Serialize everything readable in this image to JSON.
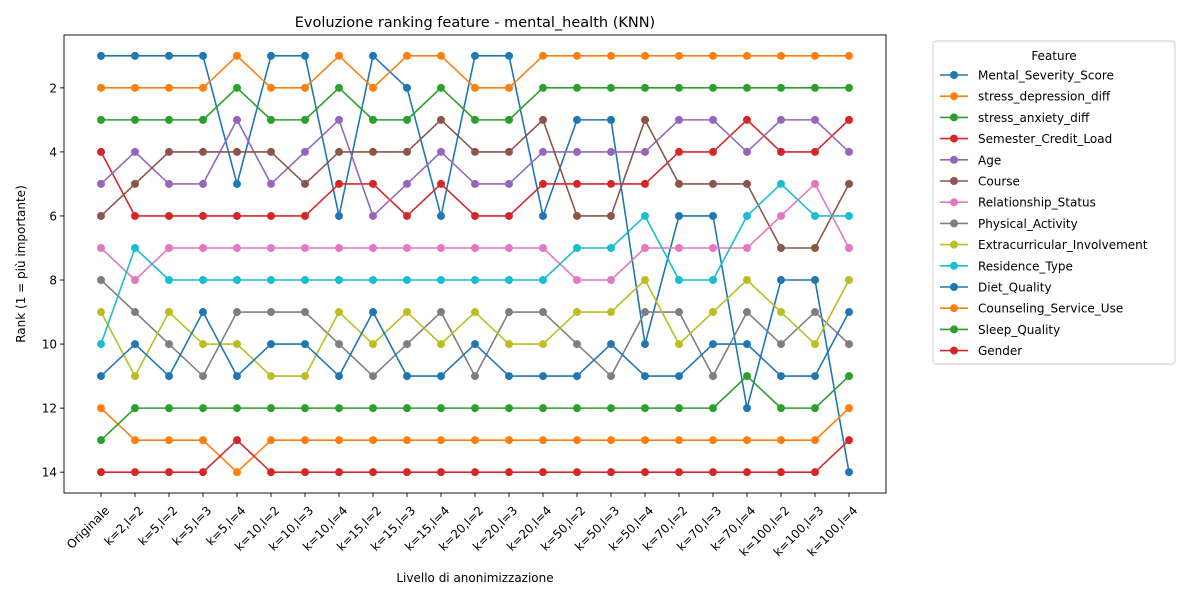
{
  "chart_data": {
    "type": "line",
    "title": "Evoluzione ranking feature - mental_health (KNN)",
    "xlabel": "Livello di anonimizzazione",
    "ylabel": "Rank (1 = più importante)",
    "ylim": [
      14.65,
      0.35
    ],
    "yticks": [
      "2",
      "4",
      "6",
      "8",
      "10",
      "12",
      "14"
    ],
    "inverted_y": true,
    "grid": false,
    "legend_title": "Feature",
    "legend_position": "outside-right",
    "categories": [
      "Originale",
      "k=2,l=2",
      "k=5,l=2",
      "k=5,l=3",
      "k=5,l=4",
      "k=10,l=2",
      "k=10,l=3",
      "k=10,l=4",
      "k=15,l=2",
      "k=15,l=3",
      "k=15,l=4",
      "k=20,l=2",
      "k=20,l=3",
      "k=20,l=4",
      "k=50,l=2",
      "k=50,l=3",
      "k=50,l=4",
      "k=70,l=2",
      "k=70,l=3",
      "k=70,l=4",
      "k=100,l=2",
      "k=100,l=3",
      "k=100,l=4"
    ],
    "series": [
      {
        "name": "Mental_Severity_Score",
        "color": "#1f77b4",
        "values": [
          1,
          1,
          1,
          1,
          5,
          1,
          1,
          6,
          1,
          2,
          6,
          1,
          1,
          6,
          3,
          3,
          10,
          6,
          6,
          12,
          8,
          8,
          14
        ]
      },
      {
        "name": "stress_depression_diff",
        "color": "#ff7f0e",
        "values": [
          2,
          2,
          2,
          2,
          1,
          2,
          2,
          1,
          2,
          1,
          1,
          2,
          2,
          1,
          1,
          1,
          1,
          1,
          1,
          1,
          1,
          1,
          1
        ]
      },
      {
        "name": "stress_anxiety_diff",
        "color": "#2ca02c",
        "values": [
          3,
          3,
          3,
          3,
          2,
          3,
          3,
          2,
          3,
          3,
          2,
          3,
          3,
          2,
          2,
          2,
          2,
          2,
          2,
          2,
          2,
          2,
          2
        ]
      },
      {
        "name": "Semester_Credit_Load",
        "color": "#d62728",
        "values": [
          4,
          6,
          6,
          6,
          6,
          6,
          6,
          5,
          5,
          6,
          5,
          6,
          6,
          5,
          5,
          5,
          5,
          4,
          4,
          3,
          4,
          4,
          3
        ]
      },
      {
        "name": "Age",
        "color": "#9467bd",
        "values": [
          5,
          4,
          5,
          5,
          3,
          5,
          4,
          3,
          6,
          5,
          4,
          5,
          5,
          4,
          4,
          4,
          4,
          3,
          3,
          4,
          3,
          3,
          4
        ]
      },
      {
        "name": "Course",
        "color": "#8c564b",
        "values": [
          6,
          5,
          4,
          4,
          4,
          4,
          5,
          4,
          4,
          4,
          3,
          4,
          4,
          3,
          6,
          6,
          3,
          5,
          5,
          5,
          7,
          7,
          5
        ]
      },
      {
        "name": "Relationship_Status",
        "color": "#e377c2",
        "values": [
          7,
          8,
          7,
          7,
          7,
          7,
          7,
          7,
          7,
          7,
          7,
          7,
          7,
          7,
          8,
          8,
          7,
          7,
          7,
          7,
          6,
          5,
          7
        ]
      },
      {
        "name": "Physical_Activity",
        "color": "#7f7f7f",
        "values": [
          8,
          9,
          10,
          11,
          9,
          9,
          9,
          10,
          11,
          10,
          9,
          11,
          9,
          9,
          10,
          11,
          9,
          9,
          11,
          9,
          10,
          9,
          10
        ]
      },
      {
        "name": "Extracurricular_Involvement",
        "color": "#bcbd22",
        "values": [
          9,
          11,
          9,
          10,
          10,
          11,
          11,
          9,
          10,
          9,
          10,
          9,
          10,
          10,
          9,
          9,
          8,
          10,
          9,
          8,
          9,
          10,
          8
        ]
      },
      {
        "name": "Residence_Type",
        "color": "#17becf",
        "values": [
          10,
          7,
          8,
          8,
          8,
          8,
          8,
          8,
          8,
          8,
          8,
          8,
          8,
          8,
          7,
          7,
          6,
          8,
          8,
          6,
          5,
          6,
          6
        ]
      },
      {
        "name": "Diet_Quality",
        "color": "#1f77b4",
        "values": [
          11,
          10,
          11,
          9,
          11,
          10,
          10,
          11,
          9,
          11,
          11,
          10,
          11,
          11,
          11,
          10,
          11,
          11,
          10,
          10,
          11,
          11,
          9
        ]
      },
      {
        "name": "Counseling_Service_Use",
        "color": "#ff7f0e",
        "values": [
          12,
          13,
          13,
          13,
          14,
          13,
          13,
          13,
          13,
          13,
          13,
          13,
          13,
          13,
          13,
          13,
          13,
          13,
          13,
          13,
          13,
          13,
          12
        ]
      },
      {
        "name": "Sleep_Quality",
        "color": "#2ca02c",
        "values": [
          13,
          12,
          12,
          12,
          12,
          12,
          12,
          12,
          12,
          12,
          12,
          12,
          12,
          12,
          12,
          12,
          12,
          12,
          12,
          11,
          12,
          12,
          11
        ]
      },
      {
        "name": "Gender",
        "color": "#d62728",
        "values": [
          14,
          14,
          14,
          14,
          13,
          14,
          14,
          14,
          14,
          14,
          14,
          14,
          14,
          14,
          14,
          14,
          14,
          14,
          14,
          14,
          14,
          14,
          13
        ]
      }
    ]
  }
}
